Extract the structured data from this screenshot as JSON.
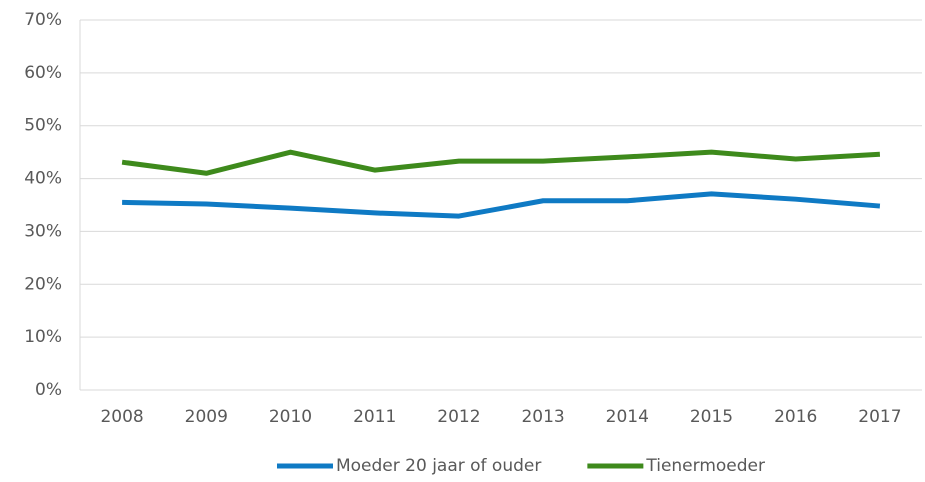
{
  "chart_data": {
    "type": "line",
    "categories": [
      "2008",
      "2009",
      "2010",
      "2011",
      "2012",
      "2013",
      "2014",
      "2015",
      "2016",
      "2017"
    ],
    "series": [
      {
        "name": "Moeder 20 jaar of ouder",
        "color": "#0f7ac4",
        "values": [
          35.5,
          35.2,
          34.4,
          33.5,
          32.9,
          35.8,
          35.8,
          37.1,
          36.1,
          34.8
        ]
      },
      {
        "name": "Tienermoeder",
        "color": "#3e8a1c",
        "values": [
          43.1,
          41.0,
          45.0,
          41.6,
          43.3,
          43.3,
          44.1,
          45.0,
          43.7,
          44.6
        ]
      }
    ],
    "ylim": [
      0,
      70
    ],
    "yticks": [
      {
        "value": 0,
        "label": "0%"
      },
      {
        "value": 10,
        "label": "10%"
      },
      {
        "value": 20,
        "label": "20%"
      },
      {
        "value": 30,
        "label": "30%"
      },
      {
        "value": 40,
        "label": "40%"
      },
      {
        "value": 50,
        "label": "50%"
      },
      {
        "value": 60,
        "label": "60%"
      },
      {
        "value": 70,
        "label": "70%"
      }
    ],
    "grid": true,
    "legend": "bottom"
  }
}
